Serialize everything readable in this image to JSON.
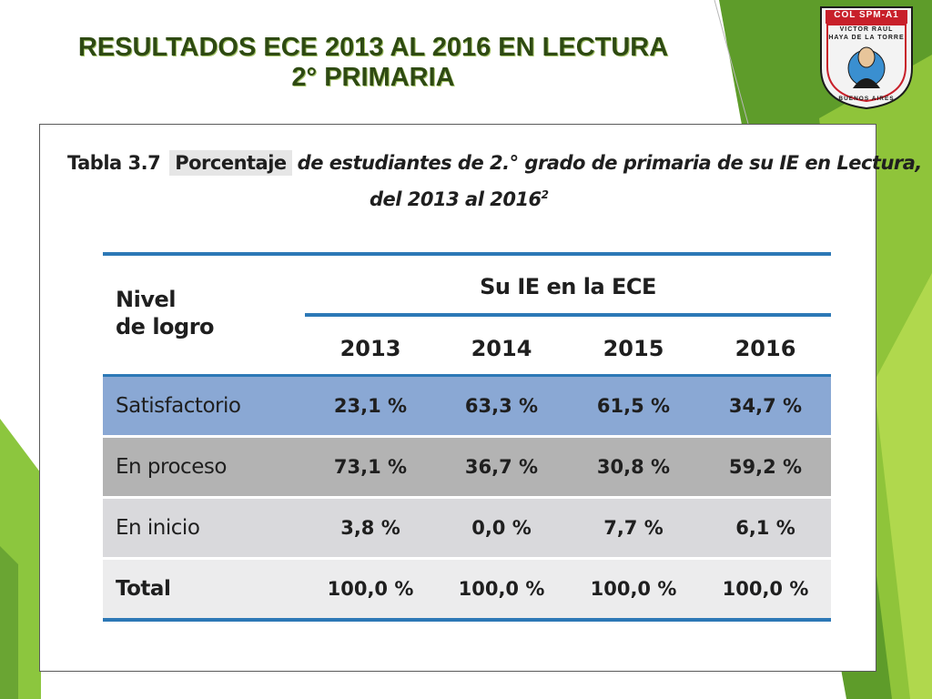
{
  "slide": {
    "title_line1": "RESULTADOS ECE 2013 AL 2016 EN LECTURA",
    "title_line2": "2° PRIMARIA"
  },
  "logo": {
    "top": "COL SPM-A1",
    "name_line1": "VICTOR RAUL",
    "name_line2": "HAYA DE LA TORRE",
    "bottom": "BUENOS AIRES"
  },
  "caption": {
    "label": "Tabla 3.7",
    "highlight": "Porcentaje",
    "line1_rest": "de estudiantes de 2.° grado de primaria de su IE en Lectura,",
    "line2": "del 2013 al 2016",
    "line2_sup": "2"
  },
  "table": {
    "row_header_line1": "Nivel",
    "row_header_line2": "de logro",
    "group_header": "Su IE en la ECE",
    "years": [
      "2013",
      "2014",
      "2015",
      "2016"
    ],
    "rows": [
      {
        "label": "Satisfactorio",
        "values": [
          "23,1 %",
          "63,3 %",
          "61,5 %",
          "34,7 %"
        ]
      },
      {
        "label": "En proceso",
        "values": [
          "73,1 %",
          "36,7 %",
          "30,8 %",
          "59,2 %"
        ]
      },
      {
        "label": "En inicio",
        "values": [
          "3,8 %",
          "0,0 %",
          "7,7 %",
          "6,1 %"
        ]
      },
      {
        "label": "Total",
        "values": [
          "100,0 %",
          "100,0 %",
          "100,0 %",
          "100,0 %"
        ]
      }
    ]
  },
  "colors": {
    "title": "#2e4a12",
    "green_dark": "#4f8f22",
    "green_light": "#9ccf3a",
    "table_rule": "#2c78b6",
    "row_satisfactorio": "#8aa8d4",
    "row_proceso": "#b3b3b3",
    "row_inicio": "#d9d9dc",
    "row_total": "#ececed"
  }
}
